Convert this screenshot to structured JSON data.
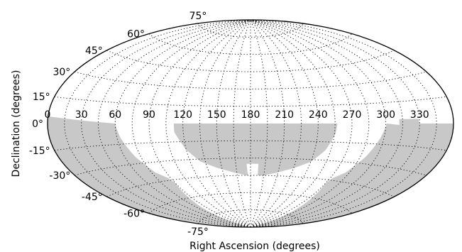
{
  "chart_data": {
    "type": "area",
    "projection": "aitoff",
    "xlabel": "Right Ascension (degrees)",
    "ylabel": "Declination (degrees)",
    "x_tick_labels": [
      "0",
      "30",
      "60",
      "90",
      "120",
      "150",
      "180",
      "210",
      "240",
      "270",
      "300",
      "330"
    ],
    "y_tick_labels": [
      "75°",
      "60°",
      "45°",
      "30°",
      "15°",
      "0°",
      "-15°",
      "-30°",
      "-45°",
      "-60°",
      "-75°"
    ],
    "x_ticks": [
      0,
      30,
      60,
      90,
      120,
      150,
      180,
      210,
      240,
      270,
      300,
      330
    ],
    "y_ticks": [
      75,
      60,
      45,
      30,
      15,
      0,
      -15,
      -30,
      -45,
      -60,
      -75
    ],
    "ra_range": [
      0,
      360
    ],
    "dec_range": [
      -90,
      90
    ],
    "grid": true,
    "colors": {
      "coverage": "#c8c8c8",
      "outline": "#000000",
      "grid": "#000000",
      "background": "#ffffff"
    },
    "coverage_regions": [
      {
        "name": "",
        "vertices": [
          [
            0,
            4
          ],
          [
            0,
            -90
          ],
          [
            360,
            -90
          ],
          [
            360,
            0
          ],
          [
            330,
            0
          ],
          [
            329,
            3
          ],
          [
            312,
            3
          ],
          [
            312,
            -1
          ],
          [
            301,
            0
          ],
          [
            300,
            -2
          ],
          [
            297,
            -10
          ],
          [
            290,
            -25
          ],
          [
            281,
            -38
          ],
          [
            273,
            -43
          ],
          [
            270,
            -48
          ],
          [
            274,
            -60
          ],
          [
            280,
            -75
          ],
          [
            286,
            -90
          ],
          [
            74,
            -90
          ],
          [
            80,
            -75
          ],
          [
            86,
            -60
          ],
          [
            90,
            -48
          ],
          [
            87,
            -43
          ],
          [
            79,
            -38
          ],
          [
            70,
            -25
          ],
          [
            63,
            -10
          ],
          [
            60,
            0
          ],
          [
            0,
            4
          ]
        ]
      },
      {
        "name": "",
        "vertices": [
          [
            112,
            0
          ],
          [
            112,
            -7
          ],
          [
            120,
            -22
          ],
          [
            130,
            -32
          ],
          [
            145,
            -38
          ],
          [
            160,
            -42
          ],
          [
            175,
            -45
          ],
          [
            177,
            -45
          ],
          [
            176,
            -35
          ],
          [
            188,
            -35
          ],
          [
            188,
            -45
          ],
          [
            195,
            -45
          ],
          [
            210,
            -42
          ],
          [
            225,
            -38
          ],
          [
            240,
            -32
          ],
          [
            250,
            -22
          ],
          [
            256,
            -8
          ],
          [
            257,
            0
          ],
          [
            112,
            0
          ]
        ]
      }
    ]
  }
}
